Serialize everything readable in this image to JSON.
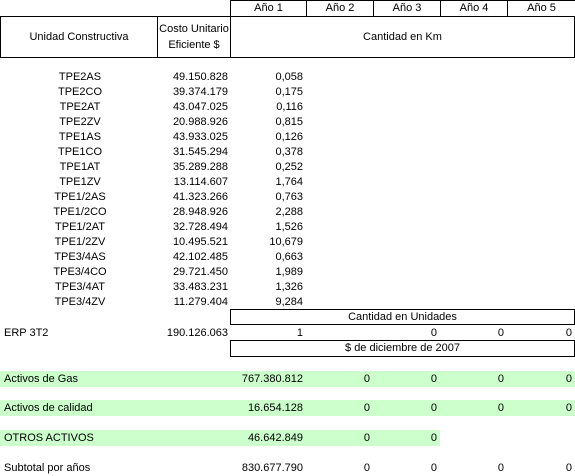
{
  "header": {
    "years": [
      "Año 1",
      "Año 2",
      "Año 3",
      "Año 4",
      "Año 5"
    ],
    "unit_label": "Unidad Constructiva",
    "cost_label": [
      "Costo Unitario",
      "Eficiente $"
    ],
    "km_label": "Cantidad en Km"
  },
  "rows": [
    [
      "TPE2AS",
      "49.150.828",
      "0,058"
    ],
    [
      "TPE2CO",
      "39.374.179",
      "0,175"
    ],
    [
      "TPE2AT",
      "43.047.025",
      "0,116"
    ],
    [
      "TPE2ZV",
      "20.988.926",
      "0,815"
    ],
    [
      "TPE1AS",
      "43.933.025",
      "0,126"
    ],
    [
      "TPE1CO",
      "31.545.294",
      "0,378"
    ],
    [
      "TPE1AT",
      "35.289.288",
      "0,252"
    ],
    [
      "TPE1ZV",
      "13.114.607",
      "1,764"
    ],
    [
      "TPE1/2AS",
      "41.323.266",
      "0,763"
    ],
    [
      "TPE1/2CO",
      "28.948.926",
      "2,288"
    ],
    [
      "TPE1/2AT",
      "32.728.494",
      "1,526"
    ],
    [
      "TPE1/2ZV",
      "10.495.521",
      "10,679"
    ],
    [
      "TPE3/4AS",
      "42.102.485",
      "0,663"
    ],
    [
      "TPE3/4CO",
      "29.721.450",
      "1,989"
    ],
    [
      "TPE3/4AT",
      "33.483.231",
      "1,326"
    ],
    [
      "TPE3/4ZV",
      "11.279.404",
      "9,284"
    ]
  ],
  "units_label": "Cantidad en Unidades",
  "erp": {
    "label": "ERP 3T2",
    "cost": "190.126.063",
    "values": [
      "1",
      null,
      "0",
      "0",
      "0"
    ]
  },
  "currency_label": "$ de diciembre de 2007",
  "totals": [
    {
      "label": "Activos de Gas",
      "values": [
        "767.380.812",
        "0",
        "0",
        "0",
        "0"
      ]
    },
    {
      "label": "Activos de calidad",
      "values": [
        "16.654.128",
        "0",
        "0",
        "0",
        "0"
      ]
    },
    {
      "label": "OTROS ACTIVOS",
      "values": [
        "46.642.849",
        "0",
        "0",
        null,
        null
      ]
    },
    {
      "label": "Subtotal por años",
      "values": [
        "830.677.790",
        "0",
        "0",
        "0",
        "0"
      ]
    }
  ]
}
